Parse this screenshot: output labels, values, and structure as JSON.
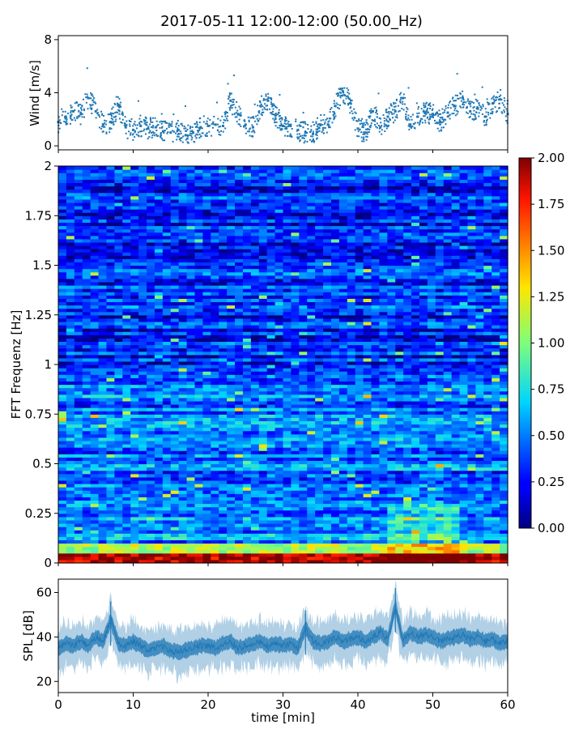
{
  "figure": {
    "title": "2017-05-11 12:00-12:00 (50.00_Hz)"
  },
  "chart_data": [
    {
      "type": "scatter",
      "panel": "wind",
      "xlabel": "",
      "ylabel": "Wind [m/s]",
      "xlim": [
        0,
        60
      ],
      "ylim": [
        -0.3,
        8.3
      ],
      "yticks": [
        0,
        4,
        8
      ],
      "ytick_labels": [
        "0",
        "4",
        "8"
      ],
      "grid": false,
      "color": "#1f77b4",
      "series": [
        {
          "x": [
            0,
            1,
            2,
            3,
            4,
            5,
            6,
            7,
            8,
            9,
            10,
            11,
            12,
            13,
            14,
            15,
            16,
            17,
            18,
            19,
            20,
            21,
            22,
            23,
            24,
            25,
            26,
            27,
            28,
            29,
            30,
            31,
            32,
            33,
            34,
            35,
            36,
            37,
            38,
            39,
            40,
            41,
            42,
            43,
            44,
            45,
            46,
            47,
            48,
            49,
            50,
            51,
            52,
            53,
            54,
            55,
            56,
            57,
            58,
            59,
            60
          ],
          "y": [
            1.8,
            2.2,
            2.6,
            2.4,
            3.6,
            2.6,
            1.6,
            1.8,
            3.1,
            1.4,
            1.2,
            1.5,
            1.3,
            1.4,
            1.1,
            1.0,
            1.2,
            0.8,
            1.0,
            1.4,
            1.5,
            1.6,
            1.5,
            3.4,
            2.4,
            1.6,
            1.4,
            3.0,
            3.4,
            2.3,
            1.5,
            1.5,
            1.2,
            1.0,
            0.9,
            1.6,
            1.6,
            3.0,
            4.1,
            3.2,
            1.3,
            1.0,
            2.6,
            1.4,
            2.2,
            2.6,
            3.6,
            1.6,
            2.2,
            2.5,
            2.4,
            1.8,
            2.5,
            3.0,
            3.6,
            2.6,
            2.8,
            2.2,
            3.2,
            3.5,
            2.4
          ]
        }
      ]
    },
    {
      "type": "heatmap",
      "panel": "spectrogram",
      "xlabel": "",
      "ylabel": "FFT Frequenz [Hz]",
      "xlim": [
        0,
        60
      ],
      "ylim": [
        0,
        2
      ],
      "yticks": [
        0,
        0.25,
        0.5,
        0.75,
        1,
        1.25,
        1.5,
        1.75,
        2
      ],
      "ytick_labels": [
        "0",
        "0.25",
        "0.5",
        "0.75",
        "1",
        "1.25",
        "1.5",
        "1.75",
        "2"
      ],
      "colormap": "jet",
      "clim": [
        0,
        2
      ],
      "colorbar_ticks": [
        "0.00",
        "0.25",
        "0.50",
        "0.75",
        "1.00",
        "1.25",
        "1.50",
        "1.75",
        "2.00"
      ],
      "frequency_bands": [
        {
          "range": [
            0,
            0.05
          ],
          "typical_level": 2.0
        },
        {
          "range": [
            0.05,
            0.1
          ],
          "typical_level": 1.0
        },
        {
          "range": [
            0.1,
            0.3
          ],
          "typical_level": 0.55
        },
        {
          "range": [
            0.3,
            1.0
          ],
          "typical_level": 0.45
        },
        {
          "range": [
            1.0,
            2.0
          ],
          "typical_level": 0.3
        }
      ]
    },
    {
      "type": "line",
      "panel": "spl",
      "xlabel": "time [min]",
      "ylabel": "SPL [dB]",
      "xlim": [
        0,
        60
      ],
      "ylim": [
        15,
        66
      ],
      "xticks": [
        0,
        10,
        20,
        30,
        40,
        50,
        60
      ],
      "xtick_labels": [
        "0",
        "10",
        "20",
        "30",
        "40",
        "50",
        "60"
      ],
      "yticks": [
        20,
        40,
        60
      ],
      "ytick_labels": [
        "20",
        "40",
        "60"
      ],
      "grid": false,
      "color": "#1f77b4",
      "series": [
        {
          "x": [
            0,
            1,
            2,
            3,
            4,
            5,
            6,
            7,
            8,
            9,
            10,
            11,
            12,
            13,
            14,
            15,
            16,
            17,
            18,
            19,
            20,
            21,
            22,
            23,
            24,
            25,
            26,
            27,
            28,
            29,
            30,
            31,
            32,
            33,
            34,
            35,
            36,
            37,
            38,
            39,
            40,
            41,
            42,
            43,
            44,
            45,
            46,
            47,
            48,
            49,
            50,
            51,
            52,
            53,
            54,
            55,
            56,
            57,
            58,
            59,
            60
          ],
          "y": [
            35,
            37,
            36,
            38,
            36,
            40,
            38,
            48,
            37,
            36,
            38,
            36,
            34,
            35,
            36,
            34,
            33,
            34,
            35,
            36,
            36,
            35,
            37,
            38,
            35,
            36,
            37,
            38,
            36,
            37,
            36,
            37,
            35,
            44,
            38,
            37,
            38,
            40,
            38,
            39,
            40,
            38,
            40,
            42,
            39,
            54,
            38,
            42,
            40,
            41,
            40,
            38,
            39,
            40,
            41,
            39,
            40,
            38,
            39,
            37,
            38
          ]
        }
      ]
    }
  ]
}
